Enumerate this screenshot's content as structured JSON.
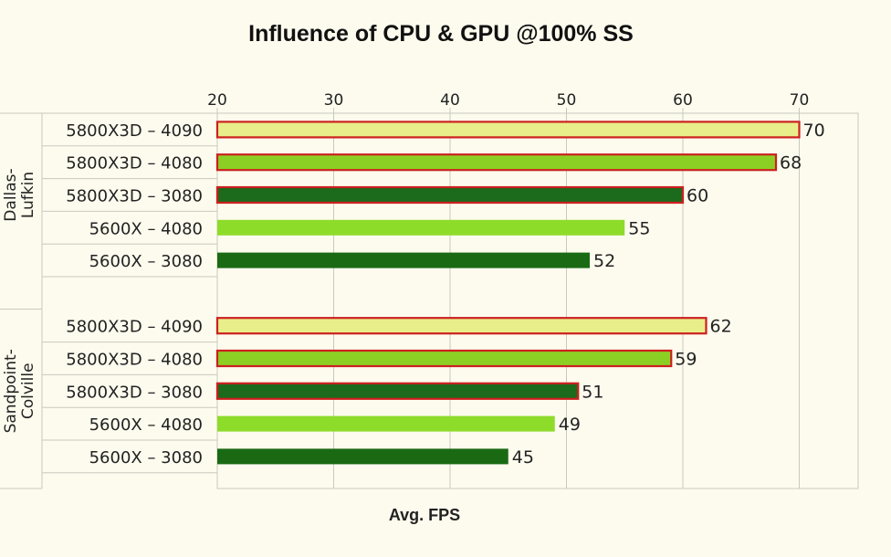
{
  "chart_data": {
    "type": "bar",
    "orientation": "horizontal",
    "title": "Influence of CPU & GPU @100% SS",
    "xlabel": "Avg. FPS",
    "ylabel": "",
    "xlim": [
      20,
      70
    ],
    "x_ticks": [
      20,
      30,
      40,
      50,
      60,
      70
    ],
    "x_axis_position": "top",
    "grid": true,
    "groups": [
      {
        "name": "Dallas-Lufkin",
        "label_lines": [
          "Dallas-",
          "Lufkin"
        ],
        "categories": [
          "5800X3D – 4090",
          "5800X3D – 4080",
          "5800X3D – 3080",
          "5600X – 4080",
          "5600X – 3080"
        ],
        "values": [
          70,
          68,
          60,
          55,
          52
        ]
      },
      {
        "name": "Sandpoint-Colville",
        "label_lines": [
          "Sandpoint-",
          "Colville"
        ],
        "categories": [
          "5800X3D – 4090",
          "5800X3D – 4080",
          "5800X3D – 3080",
          "5600X – 4080",
          "5600X – 3080"
        ],
        "values": [
          62,
          59,
          51,
          49,
          45
        ]
      }
    ],
    "colors": {
      "5800X3D – 4090": "#e8ee8a",
      "5800X3D – 4080": "#8ccf24",
      "5800X3D – 3080": "#1c6a1c",
      "5600X – 4080": "#8edc2a",
      "5600X – 3080": "#1a6a14"
    },
    "highlight_outline_color": "#cc2020",
    "highlighted_categories": [
      "5800X3D – 4090",
      "5800X3D – 4080",
      "5800X3D – 3080"
    ]
  }
}
